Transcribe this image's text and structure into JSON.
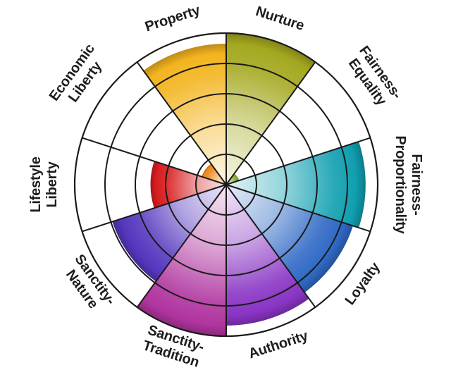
{
  "chart_data": {
    "type": "polar-rose",
    "description": "Moral foundations wheel chart with 10 equal 36-degree sectors filled radially to their score",
    "rings": 5,
    "value_range": [
      0,
      5
    ],
    "scale_max": 5,
    "start_angle_deg": 90,
    "direction": "clockwise",
    "sector_span_deg": 36,
    "grid": true,
    "grid_color": "#1a1a1a",
    "label_color": "#1d1d1d",
    "background_color": "#ffffff",
    "categories": [
      "Nurture",
      "Fairness-Equality",
      "Fairness-Proportionality",
      "Loyalty",
      "Authority",
      "Sanctity-Tradition",
      "Sanctity-Nature",
      "Lifestyle Liberty",
      "Economic Liberty",
      "Property"
    ],
    "values": [
      5.0,
      0.45,
      4.6,
      4.4,
      4.65,
      5.0,
      3.95,
      2.5,
      0.85,
      4.65
    ],
    "sectors": [
      {
        "id": "nurture",
        "label": "Nurture",
        "label_lines": [
          "Nurture"
        ],
        "value": 5.0,
        "color": "#a4a81f"
      },
      {
        "id": "fairness-equality",
        "label": "Fairness-Equality",
        "label_lines": [
          "Fairness-",
          "Equality"
        ],
        "value": 0.45,
        "color": "#7faa25"
      },
      {
        "id": "fairness-proportionality",
        "label": "Fairness-Proportionality",
        "label_lines": [
          "Fairness-",
          "Proportionality"
        ],
        "value": 4.6,
        "color": "#109fb0"
      },
      {
        "id": "loyalty",
        "label": "Loyalty",
        "label_lines": [
          "Loyalty"
        ],
        "value": 4.4,
        "color": "#2f69c5"
      },
      {
        "id": "authority",
        "label": "Authority",
        "label_lines": [
          "Authority"
        ],
        "value": 4.65,
        "color": "#8935c4"
      },
      {
        "id": "sanctity-tradition",
        "label": "Sanctity-Tradition",
        "label_lines": [
          "Sanctity-",
          "Tradition"
        ],
        "value": 5.0,
        "color": "#b0359f"
      },
      {
        "id": "sanctity-nature",
        "label": "Sanctity-Nature",
        "label_lines": [
          "Sanctity-",
          "Nature"
        ],
        "value": 3.95,
        "color": "#5537be"
      },
      {
        "id": "lifestyle-liberty",
        "label": "Lifestyle Liberty",
        "label_lines": [
          "Lifestyle",
          "Liberty"
        ],
        "value": 2.5,
        "color": "#d81c1e"
      },
      {
        "id": "economic-liberty",
        "label": "Economic Liberty",
        "label_lines": [
          "Economic",
          "Liberty"
        ],
        "value": 0.85,
        "color": "#f0871c"
      },
      {
        "id": "property",
        "label": "Property",
        "label_lines": [
          "Property"
        ],
        "value": 4.65,
        "color": "#f3b41e"
      }
    ]
  }
}
